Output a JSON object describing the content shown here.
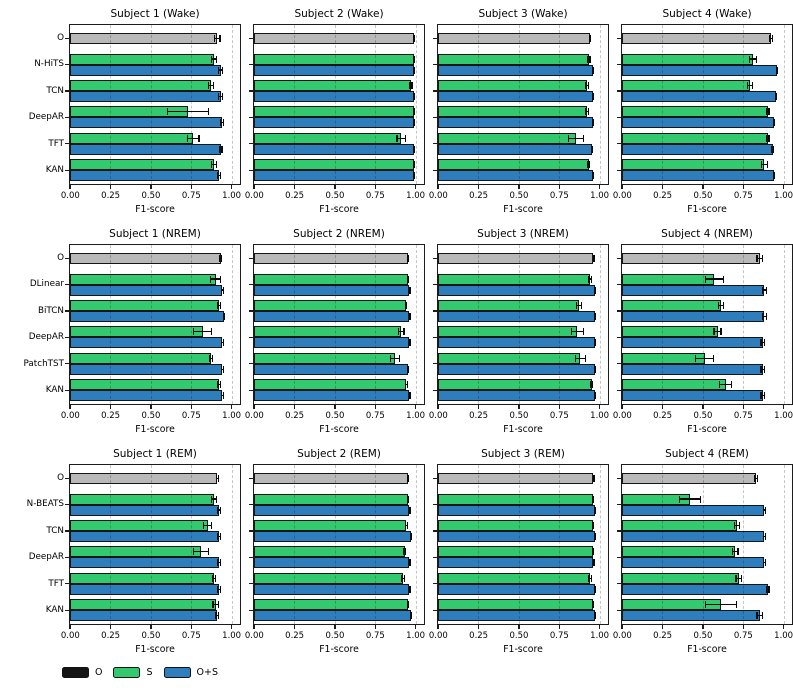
{
  "chart_data": {
    "type": "bar",
    "orientation": "horizontal",
    "xlabel": "F1-score",
    "xlim": [
      0,
      1.05
    ],
    "xticks": [
      0,
      0.25,
      0.5,
      0.75,
      1.0
    ],
    "xtick_labels": [
      "0.00",
      "0.25",
      "0.50",
      "0.75",
      "1.00"
    ],
    "grid": {
      "axis": "x",
      "style": "dashed",
      "positions": [
        0.25,
        0.5,
        0.75,
        1.0
      ]
    },
    "colors": {
      "O_bar": "#b9b9b9",
      "O_legend": "#141414",
      "S": "#33c96e",
      "O+S": "#2e7dbd",
      "bar_edge": "#161616"
    },
    "legend": {
      "position": "bottom-left",
      "items": [
        {
          "label": "O",
          "color": "#141414"
        },
        {
          "label": "S",
          "color": "#33c96e"
        },
        {
          "label": "O+S",
          "color": "#2e7dbd"
        }
      ]
    },
    "rows": [
      {
        "stage": "Wake",
        "models": [
          "O",
          "N-HiTS",
          "TCN",
          "DeepAR",
          "TFT",
          "KAN"
        ],
        "panels": [
          {
            "title": "Subject 1 (Wake)",
            "bars": [
              {
                "o": [
                  0.91,
                  0.02
                ]
              },
              {
                "s": [
                  0.89,
                  0.02
                ],
                "os": [
                  0.93,
                  0.015
                ]
              },
              {
                "s": [
                  0.87,
                  0.02
                ],
                "os": [
                  0.93,
                  0.015
                ]
              },
              {
                "s": [
                  0.73,
                  0.13
                ],
                "os": [
                  0.94,
                  0.012
                ]
              },
              {
                "s": [
                  0.76,
                  0.04
                ],
                "os": [
                  0.93,
                  0.012
                ]
              },
              {
                "s": [
                  0.89,
                  0.02
                ],
                "os": [
                  0.92,
                  0.015
                ]
              }
            ]
          },
          {
            "title": "Subject 2 (Wake)",
            "bars": [
              {
                "o": [
                  0.99,
                  0.005
                ]
              },
              {
                "s": [
                  0.99,
                  0.005
                ],
                "os": [
                  0.99,
                  0.005
                ]
              },
              {
                "s": [
                  0.97,
                  0.01
                ],
                "os": [
                  0.99,
                  0.005
                ]
              },
              {
                "s": [
                  0.99,
                  0.005
                ],
                "os": [
                  0.99,
                  0.005
                ]
              },
              {
                "s": [
                  0.91,
                  0.03
                ],
                "os": [
                  0.99,
                  0.005
                ]
              },
              {
                "s": [
                  0.99,
                  0.005
                ],
                "os": [
                  0.99,
                  0.005
                ]
              }
            ]
          },
          {
            "title": "Subject 3 (Wake)",
            "bars": [
              {
                "o": [
                  0.94,
                  0.008
                ]
              },
              {
                "s": [
                  0.93,
                  0.012
                ],
                "os": [
                  0.96,
                  0.006
                ]
              },
              {
                "s": [
                  0.92,
                  0.015
                ],
                "os": [
                  0.96,
                  0.006
                ]
              },
              {
                "s": [
                  0.92,
                  0.012
                ],
                "os": [
                  0.96,
                  0.006
                ]
              },
              {
                "s": [
                  0.85,
                  0.05
                ],
                "os": [
                  0.95,
                  0.008
                ]
              },
              {
                "s": [
                  0.93,
                  0.01
                ],
                "os": [
                  0.96,
                  0.006
                ]
              }
            ]
          },
          {
            "title": "Subject 4 (Wake)",
            "bars": [
              {
                "o": [
                  0.92,
                  0.012
                ]
              },
              {
                "s": [
                  0.81,
                  0.025
                ],
                "os": [
                  0.96,
                  0.006
                ]
              },
              {
                "s": [
                  0.79,
                  0.02
                ],
                "os": [
                  0.95,
                  0.008
                ]
              },
              {
                "s": [
                  0.9,
                  0.012
                ],
                "os": [
                  0.94,
                  0.008
                ]
              },
              {
                "s": [
                  0.9,
                  0.012
                ],
                "os": [
                  0.93,
                  0.01
                ]
              },
              {
                "s": [
                  0.88,
                  0.02
                ],
                "os": [
                  0.94,
                  0.008
                ]
              }
            ]
          }
        ]
      },
      {
        "stage": "NREM",
        "models": [
          "O",
          "DLinear",
          "BiTCN",
          "DeepAR",
          "PatchTST",
          "KAN"
        ],
        "panels": [
          {
            "title": "Subject 1 (NREM)",
            "bars": [
              {
                "o": [
                  0.93,
                  0.01
                ]
              },
              {
                "s": [
                  0.9,
                  0.035
                ],
                "os": [
                  0.94,
                  0.01
                ]
              },
              {
                "s": [
                  0.92,
                  0.012
                ],
                "os": [
                  0.95,
                  0.008
                ]
              },
              {
                "s": [
                  0.82,
                  0.06
                ],
                "os": [
                  0.94,
                  0.01
                ]
              },
              {
                "s": [
                  0.87,
                  0.012
                ],
                "os": [
                  0.94,
                  0.01
                ]
              },
              {
                "s": [
                  0.92,
                  0.012
                ],
                "os": [
                  0.94,
                  0.01
                ]
              }
            ]
          },
          {
            "title": "Subject 2 (NREM)",
            "bars": [
              {
                "o": [
                  0.95,
                  0.005
                ]
              },
              {
                "s": [
                  0.95,
                  0.006
                ],
                "os": [
                  0.96,
                  0.005
                ]
              },
              {
                "s": [
                  0.94,
                  0.008
                ],
                "os": [
                  0.96,
                  0.005
                ]
              },
              {
                "s": [
                  0.91,
                  0.02
                ],
                "os": [
                  0.96,
                  0.005
                ]
              },
              {
                "s": [
                  0.87,
                  0.03
                ],
                "os": [
                  0.95,
                  0.006
                ]
              },
              {
                "s": [
                  0.94,
                  0.01
                ],
                "os": [
                  0.96,
                  0.005
                ]
              }
            ]
          },
          {
            "title": "Subject 3 (NREM)",
            "bars": [
              {
                "o": [
                  0.96,
                  0.005
                ]
              },
              {
                "s": [
                  0.94,
                  0.012
                ],
                "os": [
                  0.97,
                  0.004
                ]
              },
              {
                "s": [
                  0.87,
                  0.02
                ],
                "os": [
                  0.97,
                  0.004
                ]
              },
              {
                "s": [
                  0.86,
                  0.04
                ],
                "os": [
                  0.97,
                  0.004
                ]
              },
              {
                "s": [
                  0.88,
                  0.035
                ],
                "os": [
                  0.97,
                  0.004
                ]
              },
              {
                "s": [
                  0.95,
                  0.01
                ],
                "os": [
                  0.97,
                  0.004
                ]
              }
            ]
          },
          {
            "title": "Subject 4 (NREM)",
            "bars": [
              {
                "o": [
                  0.85,
                  0.02
                ]
              },
              {
                "s": [
                  0.57,
                  0.06
                ],
                "os": [
                  0.88,
                  0.015
                ]
              },
              {
                "s": [
                  0.61,
                  0.02
                ],
                "os": [
                  0.88,
                  0.015
                ]
              },
              {
                "s": [
                  0.59,
                  0.025
                ],
                "os": [
                  0.87,
                  0.015
                ]
              },
              {
                "s": [
                  0.51,
                  0.06
                ],
                "os": [
                  0.87,
                  0.015
                ]
              },
              {
                "s": [
                  0.64,
                  0.04
                ],
                "os": [
                  0.87,
                  0.015
                ]
              }
            ]
          }
        ]
      },
      {
        "stage": "REM",
        "models": [
          "O",
          "N-BEATS",
          "TCN",
          "DeepAR",
          "TFT",
          "KAN"
        ],
        "panels": [
          {
            "title": "Subject 1 (REM)",
            "bars": [
              {
                "o": [
                  0.91,
                  0.01
                ]
              },
              {
                "s": [
                  0.89,
                  0.02
                ],
                "os": [
                  0.92,
                  0.012
                ]
              },
              {
                "s": [
                  0.85,
                  0.03
                ],
                "os": [
                  0.92,
                  0.012
                ]
              },
              {
                "s": [
                  0.81,
                  0.05
                ],
                "os": [
                  0.92,
                  0.012
                ]
              },
              {
                "s": [
                  0.89,
                  0.012
                ],
                "os": [
                  0.92,
                  0.012
                ]
              },
              {
                "s": [
                  0.9,
                  0.02
                ],
                "os": [
                  0.91,
                  0.012
                ]
              }
            ]
          },
          {
            "title": "Subject 2 (REM)",
            "bars": [
              {
                "o": [
                  0.95,
                  0.005
                ]
              },
              {
                "s": [
                  0.95,
                  0.008
                ],
                "os": [
                  0.96,
                  0.005
                ]
              },
              {
                "s": [
                  0.94,
                  0.01
                ],
                "os": [
                  0.97,
                  0.005
                ]
              },
              {
                "s": [
                  0.93,
                  0.01
                ],
                "os": [
                  0.96,
                  0.005
                ]
              },
              {
                "s": [
                  0.92,
                  0.012
                ],
                "os": [
                  0.96,
                  0.005
                ]
              },
              {
                "s": [
                  0.95,
                  0.008
                ],
                "os": [
                  0.97,
                  0.005
                ]
              }
            ]
          },
          {
            "title": "Subject 3 (REM)",
            "bars": [
              {
                "o": [
                  0.96,
                  0.005
                ]
              },
              {
                "s": [
                  0.96,
                  0.006
                ],
                "os": [
                  0.97,
                  0.004
                ]
              },
              {
                "s": [
                  0.96,
                  0.006
                ],
                "os": [
                  0.97,
                  0.004
                ]
              },
              {
                "s": [
                  0.96,
                  0.006
                ],
                "os": [
                  0.96,
                  0.005
                ]
              },
              {
                "s": [
                  0.94,
                  0.012
                ],
                "os": [
                  0.97,
                  0.004
                ]
              },
              {
                "s": [
                  0.96,
                  0.006
                ],
                "os": [
                  0.97,
                  0.004
                ]
              }
            ]
          },
          {
            "title": "Subject 4 (REM)",
            "bars": [
              {
                "o": [
                  0.83,
                  0.012
                ]
              },
              {
                "s": [
                  0.42,
                  0.07
                ],
                "os": [
                  0.88,
                  0.012
                ]
              },
              {
                "s": [
                  0.71,
                  0.02
                ],
                "os": [
                  0.88,
                  0.012
                ]
              },
              {
                "s": [
                  0.7,
                  0.02
                ],
                "os": [
                  0.88,
                  0.012
                ]
              },
              {
                "s": [
                  0.72,
                  0.02
                ],
                "os": [
                  0.9,
                  0.012
                ]
              },
              {
                "s": [
                  0.61,
                  0.1
                ],
                "os": [
                  0.85,
                  0.02
                ]
              }
            ]
          }
        ]
      }
    ]
  }
}
